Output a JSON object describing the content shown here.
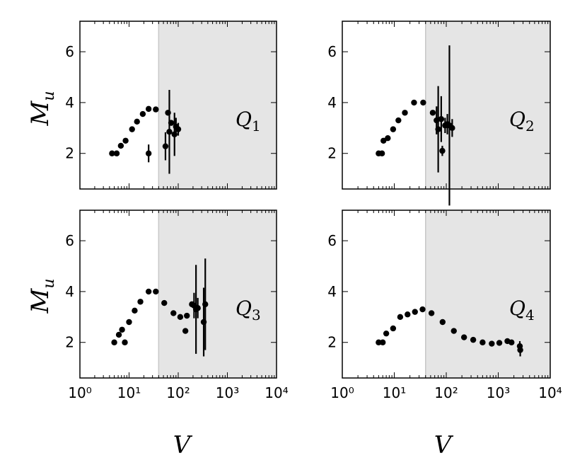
{
  "figure": {
    "y_axis_label": "M",
    "y_axis_label_sub": "u",
    "x_axis_label": "V"
  },
  "chart_data": [
    {
      "type": "scatter",
      "panel_label": "Q",
      "panel_label_sub": "1",
      "xscale": "log",
      "xlim": [
        1,
        10000
      ],
      "ylim": [
        0.6,
        7.2
      ],
      "x_ticks": [
        1,
        10,
        100,
        1000,
        10000
      ],
      "x_tick_labels": [
        "",
        "",
        "",
        "",
        ""
      ],
      "y_ticks": [
        2,
        4,
        6
      ],
      "y_tick_labels": [
        "2",
        "4",
        "6"
      ],
      "shaded_region_from_x": 40,
      "shade_color": "#e5e5e5",
      "shade_edge_color": "#c8c8c8",
      "marker_color": "#000000",
      "series": [
        {
          "points": [
            {
              "x": 4.5,
              "y": 2.0
            },
            {
              "x": 5.6,
              "y": 2.0
            },
            {
              "x": 6.8,
              "y": 2.3
            },
            {
              "x": 8.5,
              "y": 2.5
            },
            {
              "x": 11.5,
              "y": 2.95
            },
            {
              "x": 14.5,
              "y": 3.25
            },
            {
              "x": 19,
              "y": 3.55
            },
            {
              "x": 25,
              "y": 3.75
            },
            {
              "x": 35,
              "y": 3.73
            },
            {
              "x": 25,
              "y": 2.0,
              "err": 0.35
            },
            {
              "x": 55,
              "y": 2.28,
              "err": 0.55
            },
            {
              "x": 62,
              "y": 3.6
            },
            {
              "x": 66,
              "y": 2.85,
              "err": 1.65
            },
            {
              "x": 72,
              "y": 3.2
            },
            {
              "x": 84,
              "y": 2.75,
              "err": 0.85
            },
            {
              "x": 90,
              "y": 3.05,
              "err": 0.35
            },
            {
              "x": 100,
              "y": 2.95,
              "err": 0.25
            }
          ]
        }
      ]
    },
    {
      "type": "scatter",
      "panel_label": "Q",
      "panel_label_sub": "2",
      "xscale": "log",
      "xlim": [
        1,
        10000
      ],
      "ylim": [
        0.6,
        7.2
      ],
      "x_ticks": [
        1,
        10,
        100,
        1000,
        10000
      ],
      "x_tick_labels": [
        "",
        "",
        "",
        "",
        ""
      ],
      "y_ticks": [
        2,
        4,
        6
      ],
      "y_tick_labels": [
        "2",
        "4",
        "6"
      ],
      "shaded_region_from_x": 40,
      "shade_color": "#e5e5e5",
      "shade_edge_color": "#c8c8c8",
      "marker_color": "#000000",
      "series": [
        {
          "points": [
            {
              "x": 5,
              "y": 2.0
            },
            {
              "x": 5.8,
              "y": 2.0
            },
            {
              "x": 6.2,
              "y": 2.5
            },
            {
              "x": 7.5,
              "y": 2.6
            },
            {
              "x": 9.5,
              "y": 2.95
            },
            {
              "x": 12,
              "y": 3.3
            },
            {
              "x": 16,
              "y": 3.6
            },
            {
              "x": 24,
              "y": 4.0
            },
            {
              "x": 36,
              "y": 4.0
            },
            {
              "x": 55,
              "y": 3.6
            },
            {
              "x": 65,
              "y": 3.3,
              "err": 0.55
            },
            {
              "x": 70,
              "y": 2.95,
              "err": 1.7
            },
            {
              "x": 80,
              "y": 3.35,
              "err": 0.9
            },
            {
              "x": 84,
              "y": 2.1,
              "err": 0.2
            },
            {
              "x": 95,
              "y": 3.1,
              "err": 0.3
            },
            {
              "x": 105,
              "y": 3.15,
              "err": 0.4
            },
            {
              "x": 115,
              "y": 3.1,
              "err": 3.15
            },
            {
              "x": 130,
              "y": 3.0,
              "err": 0.35
            }
          ]
        }
      ]
    },
    {
      "type": "scatter",
      "panel_label": "Q",
      "panel_label_sub": "3",
      "xscale": "log",
      "xlim": [
        1,
        10000
      ],
      "ylim": [
        0.6,
        7.2
      ],
      "x_ticks": [
        1,
        10,
        100,
        1000,
        10000
      ],
      "x_tick_labels": [
        "10⁰",
        "10¹",
        "10²",
        "10³",
        "10⁴"
      ],
      "y_ticks": [
        2,
        4,
        6
      ],
      "y_tick_labels": [
        "2",
        "4",
        "6"
      ],
      "shaded_region_from_x": 40,
      "shade_color": "#e5e5e5",
      "shade_edge_color": "#c8c8c8",
      "marker_color": "#000000",
      "series": [
        {
          "points": [
            {
              "x": 5,
              "y": 2.0
            },
            {
              "x": 6.2,
              "y": 2.3
            },
            {
              "x": 7.2,
              "y": 2.5
            },
            {
              "x": 8.2,
              "y": 2.0
            },
            {
              "x": 10,
              "y": 2.8
            },
            {
              "x": 13,
              "y": 3.25
            },
            {
              "x": 17,
              "y": 3.6
            },
            {
              "x": 25,
              "y": 4.0
            },
            {
              "x": 35,
              "y": 4.0
            },
            {
              "x": 52,
              "y": 3.55
            },
            {
              "x": 80,
              "y": 3.15
            },
            {
              "x": 110,
              "y": 3.0
            },
            {
              "x": 140,
              "y": 2.45
            },
            {
              "x": 150,
              "y": 3.05
            },
            {
              "x": 190,
              "y": 3.5
            },
            {
              "x": 210,
              "y": 3.45,
              "err": 0.5
            },
            {
              "x": 230,
              "y": 3.3,
              "err": 1.75
            },
            {
              "x": 250,
              "y": 3.35,
              "err": 0.4
            },
            {
              "x": 330,
              "y": 2.8,
              "err": 1.35
            },
            {
              "x": 355,
              "y": 3.5,
              "err": 1.8
            }
          ]
        }
      ]
    },
    {
      "type": "scatter",
      "panel_label": "Q",
      "panel_label_sub": "4",
      "xscale": "log",
      "xlim": [
        1,
        10000
      ],
      "ylim": [
        0.6,
        7.2
      ],
      "x_ticks": [
        1,
        10,
        100,
        1000,
        10000
      ],
      "x_tick_labels": [
        "10⁰",
        "10¹",
        "10²",
        "10³",
        "10⁴"
      ],
      "y_ticks": [
        2,
        4,
        6
      ],
      "y_tick_labels": [
        "2",
        "4",
        "6"
      ],
      "shaded_region_from_x": 40,
      "shade_color": "#e5e5e5",
      "shade_edge_color": "#c8c8c8",
      "marker_color": "#000000",
      "series": [
        {
          "points": [
            {
              "x": 5,
              "y": 2.0
            },
            {
              "x": 6,
              "y": 2.0
            },
            {
              "x": 7,
              "y": 2.35
            },
            {
              "x": 9.5,
              "y": 2.55
            },
            {
              "x": 13,
              "y": 3.0
            },
            {
              "x": 18,
              "y": 3.1
            },
            {
              "x": 25,
              "y": 3.2
            },
            {
              "x": 35,
              "y": 3.3
            },
            {
              "x": 52,
              "y": 3.15
            },
            {
              "x": 85,
              "y": 2.8
            },
            {
              "x": 140,
              "y": 2.45
            },
            {
              "x": 220,
              "y": 2.2
            },
            {
              "x": 330,
              "y": 2.1
            },
            {
              "x": 500,
              "y": 2.0
            },
            {
              "x": 750,
              "y": 1.95
            },
            {
              "x": 1050,
              "y": 1.98
            },
            {
              "x": 1500,
              "y": 2.05
            },
            {
              "x": 1800,
              "y": 2.0
            },
            {
              "x": 2600,
              "y": 1.85,
              "err": 0.2
            },
            {
              "x": 2650,
              "y": 1.7,
              "err": 0.25
            }
          ]
        }
      ]
    }
  ]
}
